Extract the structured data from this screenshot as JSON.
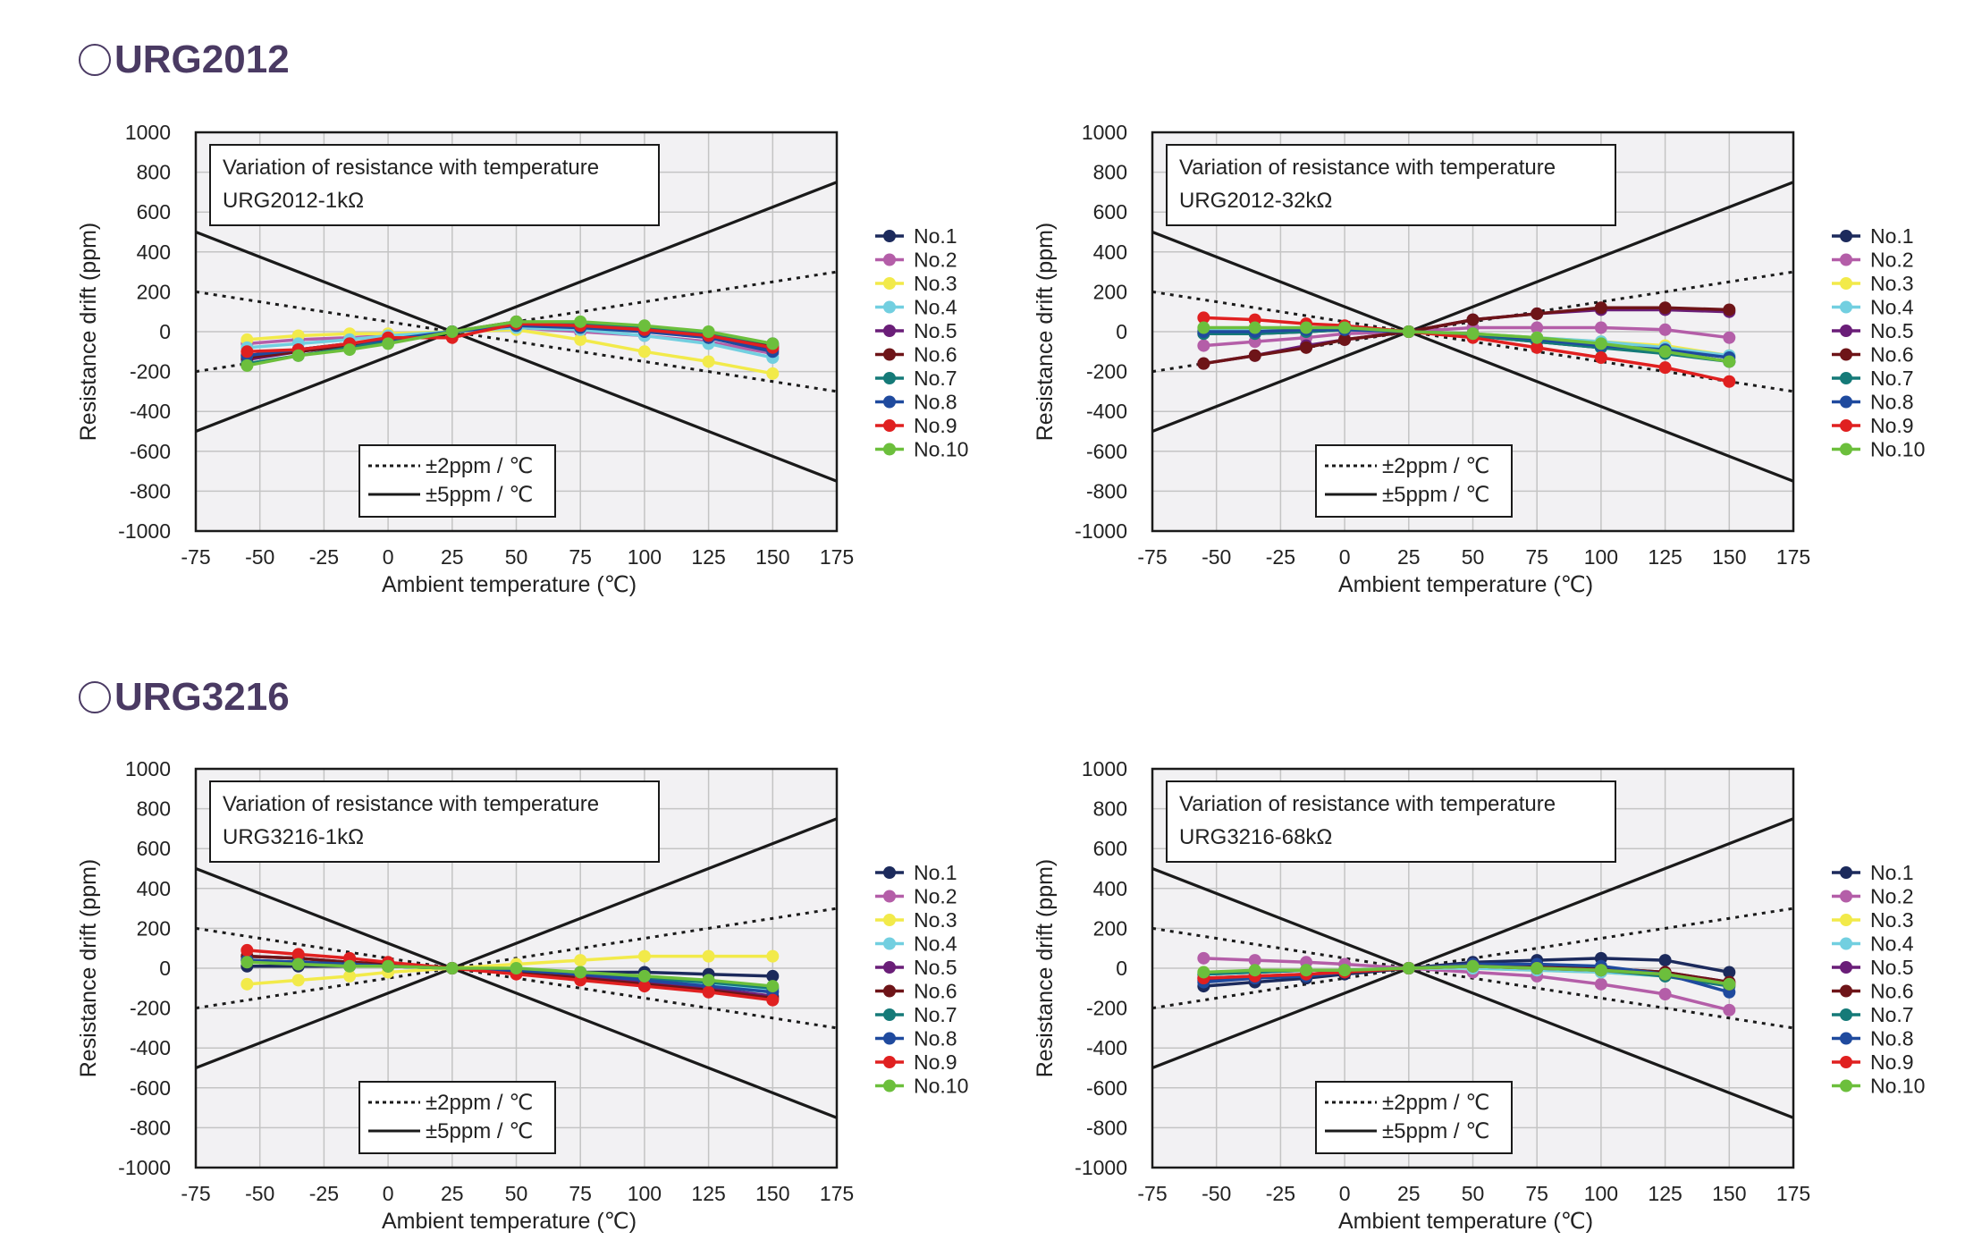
{
  "sections": [
    {
      "title": "URG2012"
    },
    {
      "title": "URG3216"
    }
  ],
  "common": {
    "xlabel": "Ambient temperature (℃)",
    "ylabel": "Resistance drift (ppm)",
    "xlim": [
      -75,
      175
    ],
    "ylim": [
      -1000,
      1000
    ],
    "xticks": [
      "-75",
      "-50",
      "-25",
      "0",
      "25",
      "50",
      "75",
      "100",
      "125",
      "150",
      "175"
    ],
    "yticks": [
      "1000",
      "800",
      "600",
      "400",
      "200",
      "0",
      "-200",
      "-400",
      "-600",
      "-800",
      "-1000"
    ],
    "limit_legend": [
      "±2ppm / ℃",
      "±5ppm / ℃"
    ],
    "series_colors": [
      "#1c2a5c",
      "#b45ea8",
      "#f2ea4a",
      "#72cfe0",
      "#6a1e78",
      "#6e1418",
      "#157a78",
      "#1f4a9e",
      "#e02020",
      "#6cbf3c"
    ],
    "plot_bg": "#f2f1f3",
    "grid_color": "#c4c4c4"
  },
  "chart_data": [
    {
      "type": "line",
      "title": "Variation of resistance with temperature",
      "subtitle": "URG2012-1kΩ",
      "x": [
        -55,
        -35,
        -15,
        0,
        25,
        50,
        75,
        100,
        125,
        150
      ],
      "reference_lines": [
        {
          "name": "±2ppm / ℃",
          "style": "dotted",
          "slopes_ppm_per_C": [
            2,
            -2
          ],
          "pivot_x": 25
        },
        {
          "name": "±5ppm / ℃",
          "style": "solid",
          "slopes_ppm_per_C": [
            5,
            -5
          ],
          "pivot_x": 25
        }
      ],
      "series": [
        {
          "name": "No.1",
          "values": [
            -120,
            -90,
            -60,
            -40,
            0,
            30,
            20,
            10,
            -20,
            -80
          ]
        },
        {
          "name": "No.2",
          "values": [
            -60,
            -40,
            -30,
            -20,
            0,
            20,
            0,
            -20,
            -50,
            -110
          ]
        },
        {
          "name": "No.3",
          "values": [
            -40,
            -20,
            -10,
            -10,
            0,
            10,
            -40,
            -100,
            -150,
            -210
          ]
        },
        {
          "name": "No.4",
          "values": [
            -80,
            -60,
            -40,
            -20,
            0,
            20,
            10,
            -20,
            -60,
            -130
          ]
        },
        {
          "name": "No.5",
          "values": [
            -140,
            -100,
            -70,
            -50,
            0,
            40,
            30,
            10,
            -30,
            -90
          ]
        },
        {
          "name": "No.6",
          "values": [
            -130,
            -100,
            -70,
            -50,
            0,
            50,
            40,
            20,
            -10,
            -70
          ]
        },
        {
          "name": "No.7",
          "values": [
            -160,
            -120,
            -80,
            -50,
            0,
            40,
            40,
            20,
            -10,
            -60
          ]
        },
        {
          "name": "No.8",
          "values": [
            -120,
            -90,
            -60,
            -40,
            0,
            30,
            20,
            0,
            -30,
            -100
          ]
        },
        {
          "name": "No.9",
          "values": [
            -100,
            -90,
            -60,
            -30,
            -30,
            40,
            30,
            10,
            -20,
            -80
          ]
        },
        {
          "name": "No.10",
          "values": [
            -170,
            -120,
            -90,
            -60,
            0,
            50,
            50,
            30,
            0,
            -60
          ]
        }
      ]
    },
    {
      "type": "line",
      "title": "Variation of resistance with temperature",
      "subtitle": "URG2012-32kΩ",
      "x": [
        -55,
        -35,
        -15,
        0,
        25,
        50,
        75,
        100,
        125,
        150
      ],
      "reference_lines": [
        {
          "name": "±2ppm / ℃",
          "style": "dotted",
          "slopes_ppm_per_C": [
            2,
            -2
          ],
          "pivot_x": 25
        },
        {
          "name": "±5ppm / ℃",
          "style": "solid",
          "slopes_ppm_per_C": [
            5,
            -5
          ],
          "pivot_x": 25
        }
      ],
      "series": [
        {
          "name": "No.1",
          "values": [
            -10,
            -10,
            0,
            10,
            0,
            -20,
            -50,
            -80,
            -100,
            -150
          ]
        },
        {
          "name": "No.2",
          "values": [
            -70,
            -50,
            -30,
            -10,
            0,
            20,
            20,
            20,
            10,
            -30
          ]
        },
        {
          "name": "No.3",
          "values": [
            0,
            0,
            10,
            10,
            0,
            -10,
            -30,
            -50,
            -70,
            -120
          ]
        },
        {
          "name": "No.4",
          "values": [
            10,
            10,
            10,
            10,
            0,
            -10,
            -30,
            -50,
            -80,
            -120
          ]
        },
        {
          "name": "No.5",
          "values": [
            -160,
            -120,
            -70,
            -40,
            0,
            60,
            90,
            110,
            110,
            100
          ]
        },
        {
          "name": "No.6",
          "values": [
            -160,
            -120,
            -80,
            -40,
            0,
            60,
            90,
            120,
            120,
            110
          ]
        },
        {
          "name": "No.7",
          "values": [
            -10,
            -10,
            0,
            10,
            0,
            -20,
            -50,
            -80,
            -110,
            -150
          ]
        },
        {
          "name": "No.8",
          "values": [
            0,
            0,
            10,
            10,
            0,
            -10,
            -40,
            -70,
            -90,
            -130
          ]
        },
        {
          "name": "No.9",
          "values": [
            70,
            60,
            40,
            30,
            0,
            -30,
            -80,
            -130,
            -180,
            -250
          ]
        },
        {
          "name": "No.10",
          "values": [
            20,
            20,
            20,
            20,
            0,
            -10,
            -30,
            -60,
            -100,
            -150
          ]
        }
      ]
    },
    {
      "type": "line",
      "title": "Variation of resistance with temperature",
      "subtitle": "URG3216-1kΩ",
      "x": [
        -55,
        -35,
        -15,
        0,
        25,
        50,
        75,
        100,
        125,
        150
      ],
      "reference_lines": [
        {
          "name": "±2ppm / ℃",
          "style": "dotted",
          "slopes_ppm_per_C": [
            2,
            -2
          ],
          "pivot_x": 25
        },
        {
          "name": "±5ppm / ℃",
          "style": "solid",
          "slopes_ppm_per_C": [
            5,
            -5
          ],
          "pivot_x": 25
        }
      ],
      "series": [
        {
          "name": "No.1",
          "values": [
            10,
            10,
            10,
            10,
            0,
            -10,
            -20,
            -20,
            -30,
            -40
          ]
        },
        {
          "name": "No.2",
          "values": [
            40,
            30,
            20,
            10,
            0,
            -10,
            -30,
            -50,
            -80,
            -110
          ]
        },
        {
          "name": "No.3",
          "values": [
            -80,
            -60,
            -40,
            -20,
            0,
            20,
            40,
            60,
            60,
            60
          ]
        },
        {
          "name": "No.4",
          "values": [
            40,
            30,
            20,
            10,
            0,
            -10,
            -30,
            -50,
            -80,
            -110
          ]
        },
        {
          "name": "No.5",
          "values": [
            60,
            50,
            30,
            20,
            0,
            -20,
            -40,
            -70,
            -100,
            -140
          ]
        },
        {
          "name": "No.6",
          "values": [
            60,
            50,
            30,
            20,
            0,
            -20,
            -50,
            -80,
            -110,
            -150
          ]
        },
        {
          "name": "No.7",
          "values": [
            40,
            30,
            20,
            10,
            0,
            -10,
            -30,
            -50,
            -70,
            -100
          ]
        },
        {
          "name": "No.8",
          "values": [
            40,
            30,
            20,
            10,
            0,
            -10,
            -30,
            -60,
            -90,
            -120
          ]
        },
        {
          "name": "No.9",
          "values": [
            90,
            70,
            50,
            30,
            0,
            -30,
            -60,
            -90,
            -120,
            -160
          ]
        },
        {
          "name": "No.10",
          "values": [
            30,
            20,
            10,
            10,
            0,
            0,
            -20,
            -40,
            -60,
            -90
          ]
        }
      ]
    },
    {
      "type": "line",
      "title": "Variation of resistance with temperature",
      "subtitle": "URG3216-68kΩ",
      "x": [
        -55,
        -35,
        -15,
        0,
        25,
        50,
        75,
        100,
        125,
        150
      ],
      "reference_lines": [
        {
          "name": "±2ppm / ℃",
          "style": "dotted",
          "slopes_ppm_per_C": [
            2,
            -2
          ],
          "pivot_x": 25
        },
        {
          "name": "±5ppm / ℃",
          "style": "solid",
          "slopes_ppm_per_C": [
            5,
            -5
          ],
          "pivot_x": 25
        }
      ],
      "series": [
        {
          "name": "No.1",
          "values": [
            -90,
            -70,
            -50,
            -30,
            0,
            30,
            40,
            50,
            40,
            -20
          ]
        },
        {
          "name": "No.2",
          "values": [
            50,
            40,
            30,
            20,
            0,
            -20,
            -40,
            -80,
            -130,
            -210
          ]
        },
        {
          "name": "No.3",
          "values": [
            -20,
            -20,
            -10,
            -10,
            0,
            0,
            -10,
            -20,
            -40,
            -80
          ]
        },
        {
          "name": "No.4",
          "values": [
            -30,
            -20,
            -10,
            -10,
            0,
            0,
            -10,
            -20,
            -40,
            -80
          ]
        },
        {
          "name": "No.5",
          "values": [
            -60,
            -50,
            -30,
            -20,
            0,
            20,
            10,
            0,
            -20,
            -70
          ]
        },
        {
          "name": "No.6",
          "values": [
            -50,
            -40,
            -30,
            -20,
            0,
            20,
            10,
            0,
            -20,
            -70
          ]
        },
        {
          "name": "No.7",
          "values": [
            -30,
            -20,
            -10,
            -10,
            0,
            10,
            0,
            -10,
            -40,
            -90
          ]
        },
        {
          "name": "No.8",
          "values": [
            -70,
            -50,
            -40,
            -20,
            0,
            20,
            20,
            10,
            -30,
            -120
          ]
        },
        {
          "name": "No.9",
          "values": [
            -50,
            -40,
            -30,
            -20,
            0,
            10,
            0,
            -10,
            -30,
            -80
          ]
        },
        {
          "name": "No.10",
          "values": [
            -20,
            -10,
            -10,
            -10,
            0,
            10,
            0,
            -10,
            -30,
            -80
          ]
        }
      ]
    }
  ]
}
